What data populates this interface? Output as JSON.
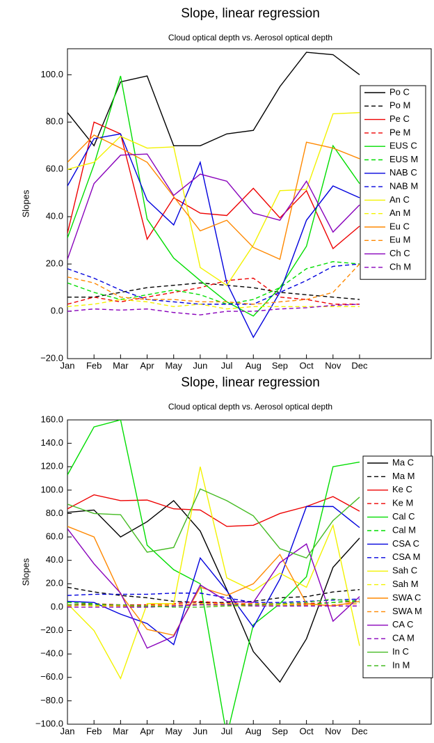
{
  "chart_data": [
    {
      "type": "line",
      "title": "Slope, linear regression",
      "subtitle": "Cloud optical depth vs. Aerosol optical depth",
      "y_label": "Slopes",
      "categories": [
        "Jan",
        "Feb",
        "Mar",
        "Apr",
        "May",
        "Jun",
        "Jul",
        "Aug",
        "Sep",
        "Oct",
        "Nov",
        "Dec"
      ],
      "ylim": [
        -20,
        111
      ],
      "yticks": [
        {
          "value": -20,
          "label": "−20.0"
        },
        {
          "value": 0,
          "label": "0.0"
        },
        {
          "value": 20,
          "label": "20.0"
        },
        {
          "value": 40,
          "label": "40.0"
        },
        {
          "value": 60,
          "label": "60.0"
        },
        {
          "value": 80,
          "label": "80.0"
        },
        {
          "value": 100,
          "label": "100.0"
        }
      ],
      "legend": "upper right",
      "series": [
        {
          "name": "Po C",
          "color": "#000000",
          "style": "solid",
          "values": [
            84,
            70,
            97,
            99.5,
            70,
            70,
            75,
            76.5,
            95,
            109.5,
            108.5,
            100
          ]
        },
        {
          "name": "Po M",
          "color": "#000000",
          "style": "dashed",
          "values": [
            6,
            6,
            8,
            10,
            11,
            12,
            11,
            10,
            8,
            7,
            6,
            5
          ]
        },
        {
          "name": "Pe C",
          "color": "#ee0000",
          "style": "solid",
          "values": [
            33,
            80,
            75,
            30.5,
            48,
            41.5,
            40.5,
            52,
            39.5,
            51,
            26.5,
            36
          ]
        },
        {
          "name": "Pe M",
          "color": "#ee0000",
          "style": "dashed",
          "values": [
            3,
            6,
            4,
            6,
            8,
            10,
            13,
            14,
            6,
            5,
            3,
            3
          ]
        },
        {
          "name": "EUS C",
          "color": "#00dd00",
          "style": "solid",
          "values": [
            31,
            62,
            99.5,
            39,
            22.5,
            13,
            4,
            -2,
            10,
            27.5,
            70,
            54
          ]
        },
        {
          "name": "EUS M",
          "color": "#00dd00",
          "style": "dashed",
          "values": [
            12,
            8,
            5,
            7,
            9,
            7,
            3,
            5,
            10,
            18,
            21,
            20
          ]
        },
        {
          "name": "NAB C",
          "color": "#0000dd",
          "style": "solid",
          "values": [
            53,
            73,
            75,
            47,
            36.5,
            63,
            12,
            -11,
            8,
            38.5,
            53,
            48
          ]
        },
        {
          "name": "NAB M",
          "color": "#0000dd",
          "style": "dashed",
          "values": [
            18,
            14,
            9,
            5,
            4,
            3,
            3,
            3,
            8,
            13,
            19,
            20
          ]
        },
        {
          "name": "An C",
          "color": "#f2f200",
          "style": "solid",
          "values": [
            60,
            63,
            74,
            69,
            69.5,
            18.5,
            11,
            28,
            51,
            51.5,
            83.5,
            84
          ]
        },
        {
          "name": "An M",
          "color": "#f2f200",
          "style": "dashed",
          "values": [
            2,
            3,
            5,
            4,
            2,
            3,
            1,
            2,
            2,
            2,
            2,
            2
          ]
        },
        {
          "name": "Eu C",
          "color": "#ff8800",
          "style": "solid",
          "values": [
            63,
            74.5,
            69,
            63,
            48.5,
            34,
            38.5,
            27,
            22,
            71.5,
            69,
            64.5
          ]
        },
        {
          "name": "Eu M",
          "color": "#ff8800",
          "style": "dashed",
          "values": [
            14.5,
            12,
            6,
            5,
            5,
            4,
            4,
            3,
            4,
            5,
            8,
            20
          ]
        },
        {
          "name": "Ch C",
          "color": "#8800bb",
          "style": "solid",
          "values": [
            22,
            54,
            66,
            66.5,
            49,
            58,
            55,
            41.5,
            38.5,
            55,
            33.5,
            45
          ]
        },
        {
          "name": "Ch M",
          "color": "#8800bb",
          "style": "dashed",
          "values": [
            0,
            1,
            0.5,
            1,
            -0.5,
            -1.5,
            0,
            0,
            1,
            1.5,
            2.5,
            3
          ]
        }
      ]
    },
    {
      "type": "line",
      "title": "Slope, linear regression",
      "subtitle": "Cloud optical depth vs. Aerosol optical depth",
      "y_label": "Slopes",
      "categories": [
        "Jan",
        "Feb",
        "Mar",
        "Apr",
        "May",
        "Jun",
        "Jul",
        "Aug",
        "Sep",
        "Oct",
        "Nov",
        "Dec"
      ],
      "ylim": [
        -100,
        160
      ],
      "yticks": [
        {
          "value": -100,
          "label": "−100.0"
        },
        {
          "value": -80,
          "label": "−80.0"
        },
        {
          "value": -60,
          "label": "−60.0"
        },
        {
          "value": -40,
          "label": "−40.0"
        },
        {
          "value": -20,
          "label": "−20.0"
        },
        {
          "value": 0,
          "label": "0.0"
        },
        {
          "value": 20,
          "label": "20.0"
        },
        {
          "value": 40,
          "label": "40.0"
        },
        {
          "value": 60,
          "label": "60.0"
        },
        {
          "value": 80,
          "label": "80.0"
        },
        {
          "value": 100,
          "label": "100.0"
        },
        {
          "value": 120,
          "label": "120.0"
        },
        {
          "value": 140,
          "label": "140.0"
        },
        {
          "value": 160,
          "label": "160.0"
        }
      ],
      "legend": "upper right",
      "series": [
        {
          "name": "Ma C",
          "color": "#000000",
          "style": "solid",
          "values": [
            81,
            83,
            60,
            73,
            91,
            65,
            15,
            -38,
            -64,
            -27,
            34,
            59
          ]
        },
        {
          "name": "Ma M",
          "color": "#000000",
          "style": "dashed",
          "values": [
            17,
            13,
            10,
            8,
            5,
            4,
            4,
            5,
            8,
            9,
            13,
            15
          ]
        },
        {
          "name": "Ke C",
          "color": "#ee0000",
          "style": "solid",
          "values": [
            84,
            96,
            91,
            91.5,
            84,
            83,
            69,
            70,
            80,
            86,
            94.5,
            82
          ]
        },
        {
          "name": "Ke M",
          "color": "#ee0000",
          "style": "dashed",
          "values": [
            2,
            3,
            2,
            2,
            3,
            5,
            3,
            2,
            2,
            3,
            4,
            5
          ]
        },
        {
          "name": "Cal C",
          "color": "#00dd00",
          "style": "solid",
          "values": [
            113,
            154,
            160,
            53,
            32,
            20,
            -110,
            -15,
            3,
            26,
            120,
            124
          ]
        },
        {
          "name": "Cal M",
          "color": "#00dd00",
          "style": "dashed",
          "values": [
            4,
            3,
            1,
            0,
            1,
            2,
            2,
            1,
            1,
            2,
            4,
            6
          ]
        },
        {
          "name": "CSA C",
          "color": "#0000dd",
          "style": "solid",
          "values": [
            5,
            4,
            -6,
            -14,
            -32,
            42,
            14,
            -17,
            24,
            86,
            86,
            68
          ]
        },
        {
          "name": "CSA M",
          "color": "#0000dd",
          "style": "dashed",
          "values": [
            10,
            11,
            11,
            11,
            12,
            12,
            8,
            4,
            4,
            5,
            6,
            7
          ]
        },
        {
          "name": "Sah C",
          "color": "#f2f200",
          "style": "solid",
          "values": [
            3,
            -20,
            -61,
            3,
            3,
            120,
            25,
            14,
            29,
            17,
            70,
            -33
          ]
        },
        {
          "name": "Sah M",
          "color": "#f2f200",
          "style": "dashed",
          "values": [
            2,
            1,
            1,
            1,
            1,
            2,
            1,
            1,
            2,
            2,
            1,
            1
          ]
        },
        {
          "name": "SWA C",
          "color": "#ff8800",
          "style": "solid",
          "values": [
            69,
            60,
            11,
            -19,
            -24,
            17,
            10,
            20,
            45,
            3,
            1,
            5
          ]
        },
        {
          "name": "SWA M",
          "color": "#ff8800",
          "style": "dashed",
          "values": [
            1,
            2,
            1,
            1,
            2,
            3,
            3,
            3,
            3,
            2,
            2,
            3
          ]
        },
        {
          "name": "CA C",
          "color": "#8800bb",
          "style": "solid",
          "values": [
            67,
            37,
            12,
            -35,
            -25,
            19,
            5,
            4,
            38,
            54,
            -12,
            9
          ]
        },
        {
          "name": "CA M",
          "color": "#8800bb",
          "style": "dashed",
          "values": [
            0,
            0,
            0,
            0,
            1,
            2,
            2,
            1,
            1,
            1,
            1,
            1
          ]
        },
        {
          "name": "In C",
          "color": "#44bb22",
          "style": "solid",
          "values": [
            88,
            80,
            79,
            47,
            51,
            101,
            91,
            78,
            50,
            42,
            74,
            94
          ]
        },
        {
          "name": "In M",
          "color": "#44bb22",
          "style": "dashed",
          "values": [
            2,
            2,
            2,
            1,
            0,
            0,
            1,
            2,
            3,
            4,
            7,
            4
          ]
        }
      ]
    }
  ]
}
